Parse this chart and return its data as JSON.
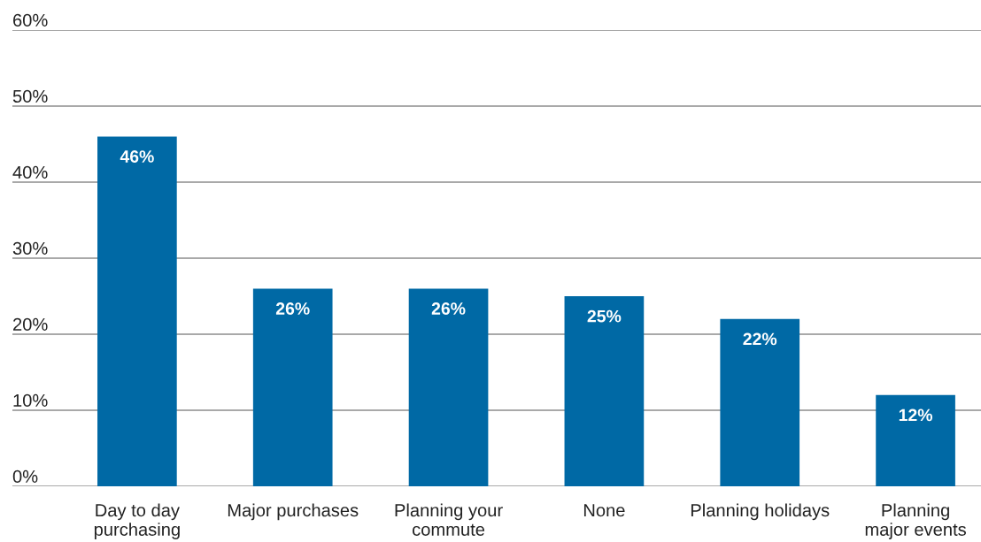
{
  "chart_data": {
    "type": "bar",
    "categories": [
      "Day to day\npurchasing",
      "Major purchases",
      "Planning your\ncommute",
      "None",
      "Planning holidays",
      "Planning\nmajor events"
    ],
    "values": [
      46,
      26,
      26,
      25,
      22,
      12
    ],
    "color": "#0069a5",
    "value_labels": [
      "46%",
      "26%",
      "26%",
      "25%",
      "22%",
      "12%"
    ],
    "ylim": [
      0,
      60
    ],
    "yticks": [
      {
        "value": 0,
        "label": "0%"
      },
      {
        "value": 10,
        "label": "10%"
      },
      {
        "value": 20,
        "label": "20%"
      },
      {
        "value": 30,
        "label": "30%"
      },
      {
        "value": 40,
        "label": "40%"
      },
      {
        "value": 50,
        "label": "50%"
      },
      {
        "value": 60,
        "label": "60%"
      }
    ],
    "grid": "y"
  }
}
